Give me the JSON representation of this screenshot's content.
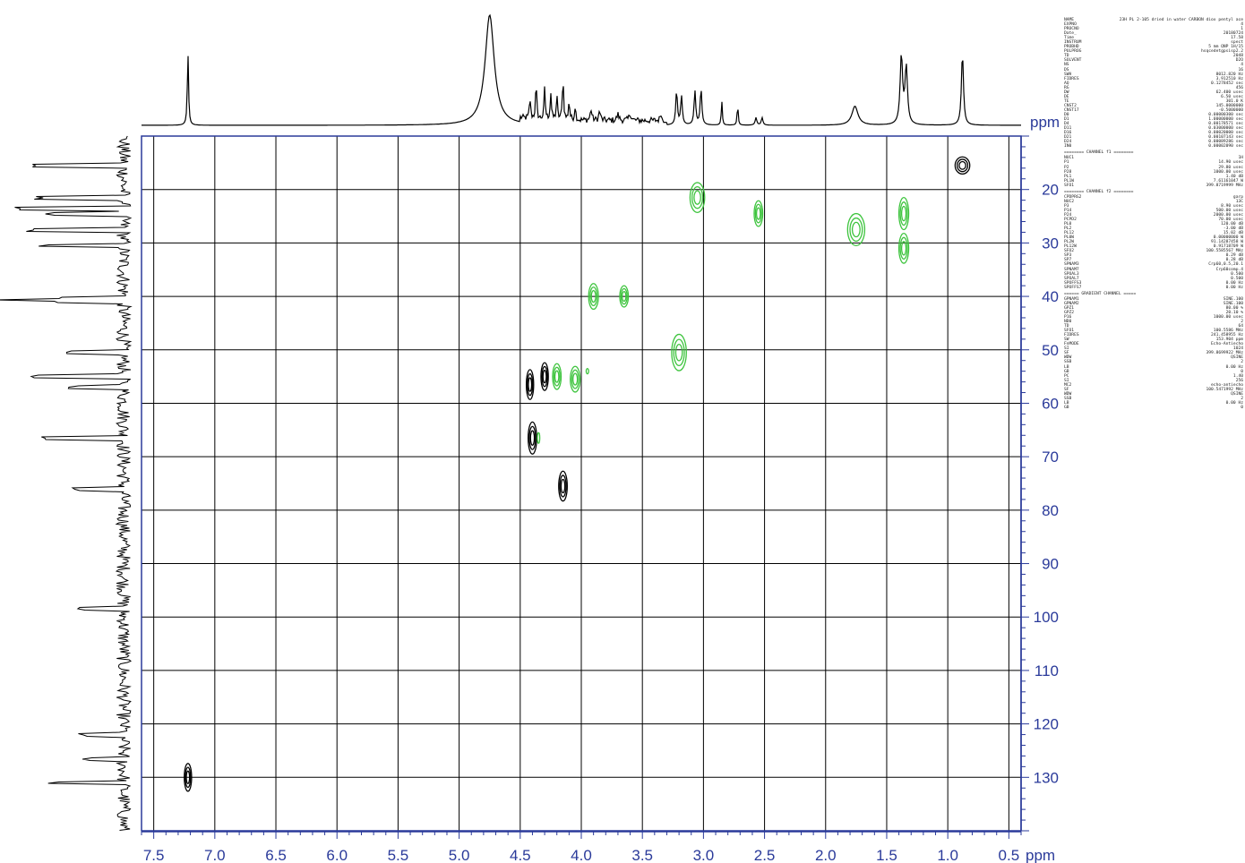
{
  "chart_data": {
    "type": "heatmap",
    "subtype": "2d-nmr-hsqc-contour",
    "title": "",
    "x_axis": {
      "unit_label": "ppm",
      "range": [
        7.6,
        0.4
      ],
      "reversed": true,
      "ticks": [
        7.5,
        7.0,
        6.5,
        6.0,
        5.5,
        5.0,
        4.5,
        4.0,
        3.5,
        3.0,
        2.5,
        2.0,
        1.5,
        1.0,
        0.5
      ],
      "tick_labels": [
        "7.5",
        "7.0",
        "6.5",
        "6.0",
        "5.5",
        "5.0",
        "4.5",
        "4.0",
        "3.5",
        "3.0",
        "2.5",
        "2.0",
        "1.5",
        "1.0",
        "0.5"
      ]
    },
    "y_axis": {
      "unit_label": "ppm",
      "range": [
        10,
        140
      ],
      "reversed": true,
      "ticks": [
        20,
        30,
        40,
        50,
        60,
        70,
        80,
        90,
        100,
        110,
        120,
        130
      ],
      "tick_labels": [
        "20",
        "30",
        "40",
        "50",
        "60",
        "70",
        "80",
        "90",
        "100",
        "110",
        "120",
        "130"
      ]
    },
    "grid": true,
    "colors": {
      "axis": "#2a3a9a",
      "positive": "#000000",
      "negative": "#3ec43e",
      "grid": "#000000",
      "trace": "#000000"
    },
    "cross_peaks": [
      {
        "h": 7.22,
        "c": 130.0,
        "phase": "positive",
        "dh": 0.03,
        "dc": 2.6
      },
      {
        "h": 4.42,
        "c": 56.5,
        "phase": "positive",
        "dh": 0.03,
        "dc": 2.8
      },
      {
        "h": 4.3,
        "c": 55.0,
        "phase": "positive",
        "dh": 0.03,
        "dc": 2.6
      },
      {
        "h": 4.4,
        "c": 66.5,
        "phase": "positive",
        "dh": 0.035,
        "dc": 3.0
      },
      {
        "h": 4.15,
        "c": 75.5,
        "phase": "positive",
        "dh": 0.035,
        "dc": 2.8
      },
      {
        "h": 0.88,
        "c": 15.5,
        "phase": "positive",
        "dh": 0.06,
        "dc": 1.6
      },
      {
        "h": 3.05,
        "c": 21.5,
        "phase": "negative",
        "dh": 0.06,
        "dc": 2.8
      },
      {
        "h": 2.55,
        "c": 24.5,
        "phase": "negative",
        "dh": 0.035,
        "dc": 2.4
      },
      {
        "h": 1.75,
        "c": 27.5,
        "phase": "negative",
        "dh": 0.07,
        "dc": 3.0
      },
      {
        "h": 1.36,
        "c": 24.5,
        "phase": "negative",
        "dh": 0.04,
        "dc": 3.0
      },
      {
        "h": 1.36,
        "c": 31.0,
        "phase": "negative",
        "dh": 0.04,
        "dc": 2.8
      },
      {
        "h": 3.9,
        "c": 40.0,
        "phase": "negative",
        "dh": 0.04,
        "dc": 2.4
      },
      {
        "h": 3.65,
        "c": 40.0,
        "phase": "negative",
        "dh": 0.035,
        "dc": 2.0
      },
      {
        "h": 3.2,
        "c": 50.5,
        "phase": "negative",
        "dh": 0.06,
        "dc": 3.4
      },
      {
        "h": 4.2,
        "c": 55.0,
        "phase": "negative",
        "dh": 0.035,
        "dc": 2.4
      },
      {
        "h": 4.05,
        "c": 55.5,
        "phase": "negative",
        "dh": 0.04,
        "dc": 2.4
      },
      {
        "h": 3.95,
        "c": 54.0,
        "phase": "negative",
        "dh": 0.01,
        "dc": 0.5
      },
      {
        "h": 4.35,
        "c": 66.5,
        "phase": "negative",
        "dh": 0.01,
        "dc": 1.0
      }
    ],
    "h1_projection_peaks": [
      {
        "ppm": 7.22,
        "height": 0.95,
        "width": 0.006
      },
      {
        "ppm": 4.75,
        "height": 1.45,
        "width": 0.045
      },
      {
        "ppm": 4.42,
        "height": 0.26,
        "width": 0.006
      },
      {
        "ppm": 4.37,
        "height": 0.45,
        "width": 0.006
      },
      {
        "ppm": 4.3,
        "height": 0.4,
        "width": 0.006
      },
      {
        "ppm": 4.25,
        "height": 0.35,
        "width": 0.006
      },
      {
        "ppm": 4.2,
        "height": 0.3,
        "width": 0.006
      },
      {
        "ppm": 4.15,
        "height": 0.56,
        "width": 0.006
      },
      {
        "ppm": 4.1,
        "height": 0.25,
        "width": 0.006
      },
      {
        "ppm": 4.05,
        "height": 0.18,
        "width": 0.006
      },
      {
        "ppm": 3.92,
        "height": 0.14,
        "width": 0.008
      },
      {
        "ppm": 3.85,
        "height": 0.12,
        "width": 0.008
      },
      {
        "ppm": 3.7,
        "height": 0.08,
        "width": 0.01
      },
      {
        "ppm": 3.6,
        "height": 0.09,
        "width": 0.01
      },
      {
        "ppm": 3.35,
        "height": 0.12,
        "width": 0.005
      },
      {
        "ppm": 3.22,
        "height": 0.45,
        "width": 0.008
      },
      {
        "ppm": 3.18,
        "height": 0.38,
        "width": 0.008
      },
      {
        "ppm": 3.07,
        "height": 0.45,
        "width": 0.008
      },
      {
        "ppm": 3.02,
        "height": 0.48,
        "width": 0.008
      },
      {
        "ppm": 2.85,
        "height": 0.32,
        "width": 0.005
      },
      {
        "ppm": 2.72,
        "height": 0.28,
        "width": 0.005
      },
      {
        "ppm": 2.57,
        "height": 0.1,
        "width": 0.008
      },
      {
        "ppm": 2.52,
        "height": 0.1,
        "width": 0.008
      },
      {
        "ppm": 1.76,
        "height": 0.25,
        "width": 0.03
      },
      {
        "ppm": 1.38,
        "height": 0.9,
        "width": 0.012
      },
      {
        "ppm": 1.34,
        "height": 0.75,
        "width": 0.012
      },
      {
        "ppm": 0.88,
        "height": 0.95,
        "width": 0.01
      }
    ],
    "c13_projection_peaks": [
      {
        "ppm": 15.5,
        "height": 0.85
      },
      {
        "ppm": 21.5,
        "height": 0.8
      },
      {
        "ppm": 23.5,
        "height": 0.95
      },
      {
        "ppm": 24.5,
        "height": 0.7
      },
      {
        "ppm": 27.5,
        "height": 0.85
      },
      {
        "ppm": 30.5,
        "height": 0.75
      },
      {
        "ppm": 40.5,
        "height": 0.55
      },
      {
        "ppm": 41.0,
        "height": 0.65
      },
      {
        "ppm": 50.5,
        "height": 0.55
      },
      {
        "ppm": 55.0,
        "height": 0.85
      },
      {
        "ppm": 57.0,
        "height": 0.45
      },
      {
        "ppm": 66.5,
        "height": 0.7
      },
      {
        "ppm": 76.0,
        "height": 0.45
      },
      {
        "ppm": 98.5,
        "height": 0.4
      },
      {
        "ppm": 122.0,
        "height": 0.4
      },
      {
        "ppm": 126.5,
        "height": 0.35
      },
      {
        "ppm": 131.0,
        "height": 0.65
      }
    ]
  },
  "axes_labels": {
    "x_unit": "ppm",
    "y_unit": "ppm"
  },
  "params": {
    "header": [
      [
        "NAME",
        "23H PL 2-105 dried in water CARBON diox pentyl ace"
      ],
      [
        "EXPNO",
        "4"
      ],
      [
        "PROCNO",
        "1"
      ],
      [
        "Date_",
        "20180724"
      ],
      [
        "Time",
        "17.58"
      ],
      [
        "INSTRUM",
        "spect"
      ],
      [
        "PROBHD",
        "5 mm QNP 1H/15"
      ],
      [
        "PULPROG",
        "hsqcedetgpsisp2.2"
      ],
      [
        "TD",
        "2048"
      ],
      [
        "SOLVENT",
        "D2O"
      ],
      [
        "NS",
        "4"
      ],
      [
        "DS",
        "16"
      ],
      [
        "SWH",
        "8012.820 Hz"
      ],
      [
        "FIDRES",
        "3.912510 Hz"
      ],
      [
        "AQ",
        "0.1278452 sec"
      ],
      [
        "RG",
        "456"
      ],
      [
        "DW",
        "62.400 usec"
      ],
      [
        "DE",
        "6.50 usec"
      ],
      [
        "TE",
        "301.0 K"
      ],
      [
        "CNST2",
        "145.0000000"
      ],
      [
        "CNST17",
        "-0.5000000"
      ],
      [
        "D0",
        "0.00000300 sec"
      ],
      [
        "D1",
        "1.00000000 sec"
      ],
      [
        "D4",
        "0.00178571 sec"
      ],
      [
        "D11",
        "0.03000000 sec"
      ],
      [
        "D16",
        "0.00020000 sec"
      ],
      [
        "D21",
        "0.00107143 sec"
      ],
      [
        "D24",
        "0.00089286 sec"
      ],
      [
        "IN0",
        "0.00002090 sec"
      ]
    ],
    "ch1_title": "======== CHANNEL f1 ========",
    "ch1": [
      [
        "NUC1",
        "1H"
      ],
      [
        "P1",
        "14.90 usec"
      ],
      [
        "P2",
        "29.80 usec"
      ],
      [
        "P28",
        "1000.00 usec"
      ],
      [
        "PL1",
        "1.40 dB"
      ],
      [
        "PL1W",
        "7.61161047 W"
      ],
      [
        "SFO1",
        "399.8719999 MHz"
      ]
    ],
    "ch2_title": "======== CHANNEL f2 ========",
    "ch2": [
      [
        "CPDPRG2",
        "garp"
      ],
      [
        "NUC2",
        "13C"
      ],
      [
        "P3",
        "8.90 usec"
      ],
      [
        "P14",
        "500.00 usec"
      ],
      [
        "P24",
        "2000.00 usec"
      ],
      [
        "PCPD2",
        "70.00 usec"
      ],
      [
        "PL0",
        "120.00 dB"
      ],
      [
        "PL2",
        "-3.00 dB"
      ],
      [
        "PL12",
        "15.02 dB"
      ],
      [
        "PL0W",
        "0.00000000 W"
      ],
      [
        "PL2W",
        "91.14287458 W"
      ],
      [
        "PL12W",
        "0.91718709 W"
      ],
      [
        "SFO2",
        "100.5585567 MHz"
      ],
      [
        "SP3",
        "0.29 dB"
      ],
      [
        "SP7",
        "0.28 dB"
      ],
      [
        "SPNAM3",
        "Crp60,0.5,20.1"
      ],
      [
        "SPNAM7",
        "Crp60comp.4"
      ],
      [
        "SPOAL3",
        "0.500"
      ],
      [
        "SPOAL7",
        "0.500"
      ],
      [
        "SPOFFS3",
        "0.00 Hz"
      ],
      [
        "SPOFFS7",
        "0.00 Hz"
      ]
    ],
    "grad_title": "====== GRADIENT CHANNEL =====",
    "grad": [
      [
        "GPNAM1",
        "SINE.100"
      ],
      [
        "GPNAM2",
        "SINE.100"
      ],
      [
        "GPZ1",
        "80.00 %"
      ],
      [
        "GPZ2",
        "20.10 %"
      ],
      [
        "P16",
        "1000.00 usec"
      ],
      [
        "ND0",
        "2"
      ],
      [
        "TD",
        "64"
      ],
      [
        "SFO1",
        "100.5586 MHz"
      ],
      [
        "FIDRES",
        "241.458955 Hz"
      ],
      [
        "SW",
        "153.904 ppm"
      ],
      [
        "FnMODE",
        "Echo-Antiecho"
      ],
      [
        "SI",
        "1024"
      ],
      [
        "SF",
        "399.8699922 MHz"
      ],
      [
        "WDW",
        "QSINE"
      ],
      [
        "SSB",
        "2"
      ],
      [
        "LB",
        "0.00 Hz"
      ],
      [
        "GB",
        "0"
      ],
      [
        "PC",
        "1.40"
      ],
      [
        "SI",
        "256"
      ],
      [
        "MC2",
        "echo-antiecho"
      ],
      [
        "SF",
        "100.5471992 MHz"
      ],
      [
        "WDW",
        "QSINE"
      ],
      [
        "SSB",
        "2"
      ],
      [
        "LB",
        "0.00 Hz"
      ],
      [
        "GB",
        "0"
      ]
    ]
  }
}
